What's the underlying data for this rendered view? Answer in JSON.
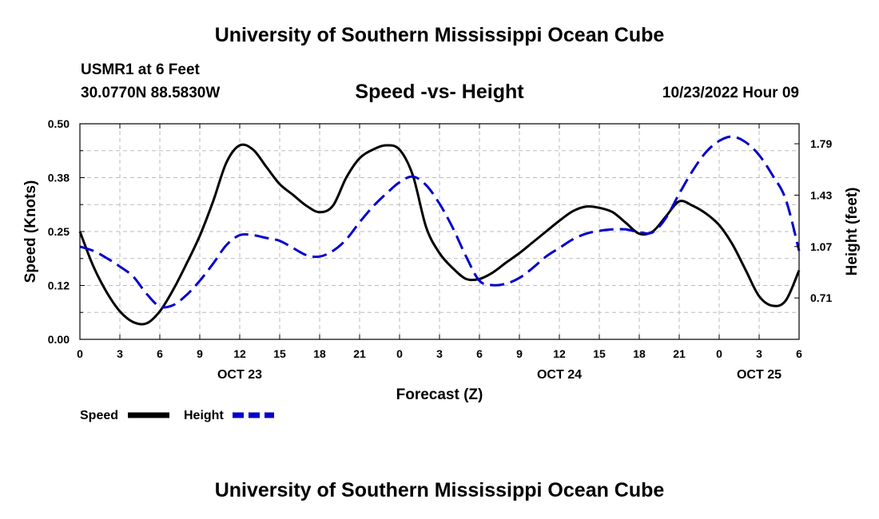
{
  "header": {
    "main_title": "University of Southern Mississippi Ocean Cube",
    "station": "USMR1 at 6 Feet",
    "coords": "30.0770N  88.5830W",
    "subtitle": "Speed -vs- Height",
    "datetime": "10/23/2022 Hour 09"
  },
  "footer": {
    "title": "University of Southern Mississippi Ocean Cube"
  },
  "colors": {
    "speed": "#000000",
    "height": "#0000cc",
    "grid": "#bbbbbb"
  },
  "chart_data": {
    "type": "line",
    "xlabel": "Forecast (Z)",
    "ylabel_left": "Speed (Knots)",
    "ylabel_right": "Height (feet)",
    "x_range_hours": [
      0,
      54
    ],
    "x_ticks": [
      "0",
      "3",
      "6",
      "9",
      "12",
      "15",
      "18",
      "21",
      "0",
      "3",
      "6",
      "9",
      "12",
      "15",
      "18",
      "21",
      "0",
      "3",
      "6"
    ],
    "date_labels": [
      {
        "label": "OCT 23",
        "hour": 12
      },
      {
        "label": "OCT 24",
        "hour": 36
      },
      {
        "label": "OCT 25",
        "hour": 51
      }
    ],
    "y_left": {
      "range": [
        0,
        0.5
      ],
      "ticks": [
        "0.00",
        "0.12",
        "0.25",
        "0.38",
        "0.50"
      ]
    },
    "y_right": {
      "range": [
        0.42,
        1.93
      ],
      "ticks": [
        "0.71",
        "1.07",
        "1.43",
        "1.79"
      ]
    },
    "grid": true,
    "legend_position": "bottom-left",
    "series": [
      {
        "name": "Speed",
        "axis": "left",
        "style": "solid",
        "points": [
          [
            0,
            0.25
          ],
          [
            1,
            0.17
          ],
          [
            2,
            0.11
          ],
          [
            3,
            0.065
          ],
          [
            4,
            0.04
          ],
          [
            5,
            0.037
          ],
          [
            6,
            0.065
          ],
          [
            7,
            0.115
          ],
          [
            8,
            0.175
          ],
          [
            9,
            0.24
          ],
          [
            10,
            0.32
          ],
          [
            11,
            0.41
          ],
          [
            12,
            0.45
          ],
          [
            13,
            0.44
          ],
          [
            14,
            0.4
          ],
          [
            15,
            0.36
          ],
          [
            16,
            0.335
          ],
          [
            17,
            0.31
          ],
          [
            18,
            0.295
          ],
          [
            19,
            0.31
          ],
          [
            20,
            0.375
          ],
          [
            21,
            0.42
          ],
          [
            22,
            0.44
          ],
          [
            23,
            0.45
          ],
          [
            24,
            0.44
          ],
          [
            25,
            0.38
          ],
          [
            26,
            0.26
          ],
          [
            27,
            0.2
          ],
          [
            28,
            0.165
          ],
          [
            29,
            0.14
          ],
          [
            30,
            0.14
          ],
          [
            31,
            0.155
          ],
          [
            32,
            0.178
          ],
          [
            33,
            0.2
          ],
          [
            34,
            0.225
          ],
          [
            35,
            0.25
          ],
          [
            36,
            0.275
          ],
          [
            37,
            0.297
          ],
          [
            38,
            0.308
          ],
          [
            39,
            0.305
          ],
          [
            40,
            0.295
          ],
          [
            41,
            0.27
          ],
          [
            42,
            0.245
          ],
          [
            43,
            0.25
          ],
          [
            44,
            0.285
          ],
          [
            45,
            0.32
          ],
          [
            46,
            0.31
          ],
          [
            47,
            0.292
          ],
          [
            48,
            0.265
          ],
          [
            49,
            0.22
          ],
          [
            50,
            0.16
          ],
          [
            51,
            0.1
          ],
          [
            52,
            0.078
          ],
          [
            53,
            0.09
          ],
          [
            54,
            0.16
          ]
        ]
      },
      {
        "name": "Height",
        "axis": "right",
        "style": "dashed",
        "points": [
          [
            0,
            1.07
          ],
          [
            1,
            1.04
          ],
          [
            2,
            0.99
          ],
          [
            3,
            0.93
          ],
          [
            4,
            0.86
          ],
          [
            5,
            0.74
          ],
          [
            6,
            0.65
          ],
          [
            7,
            0.66
          ],
          [
            8,
            0.73
          ],
          [
            9,
            0.83
          ],
          [
            10,
            0.95
          ],
          [
            11,
            1.08
          ],
          [
            12,
            1.15
          ],
          [
            13,
            1.15
          ],
          [
            14,
            1.13
          ],
          [
            15,
            1.11
          ],
          [
            16,
            1.06
          ],
          [
            17,
            1.01
          ],
          [
            18,
            1.0
          ],
          [
            19,
            1.04
          ],
          [
            20,
            1.12
          ],
          [
            21,
            1.24
          ],
          [
            22,
            1.35
          ],
          [
            23,
            1.44
          ],
          [
            24,
            1.52
          ],
          [
            25,
            1.56
          ],
          [
            26,
            1.5
          ],
          [
            27,
            1.37
          ],
          [
            28,
            1.2
          ],
          [
            29,
            1.0
          ],
          [
            30,
            0.83
          ],
          [
            31,
            0.8
          ],
          [
            32,
            0.81
          ],
          [
            33,
            0.85
          ],
          [
            34,
            0.92
          ],
          [
            35,
            1.0
          ],
          [
            36,
            1.06
          ],
          [
            37,
            1.12
          ],
          [
            38,
            1.16
          ],
          [
            39,
            1.18
          ],
          [
            40,
            1.19
          ],
          [
            41,
            1.19
          ],
          [
            42,
            1.17
          ],
          [
            43,
            1.17
          ],
          [
            44,
            1.27
          ],
          [
            45,
            1.44
          ],
          [
            46,
            1.6
          ],
          [
            47,
            1.73
          ],
          [
            48,
            1.81
          ],
          [
            49,
            1.84
          ],
          [
            50,
            1.8
          ],
          [
            51,
            1.71
          ],
          [
            52,
            1.57
          ],
          [
            53,
            1.4
          ],
          [
            54,
            1.04
          ]
        ]
      }
    ]
  }
}
